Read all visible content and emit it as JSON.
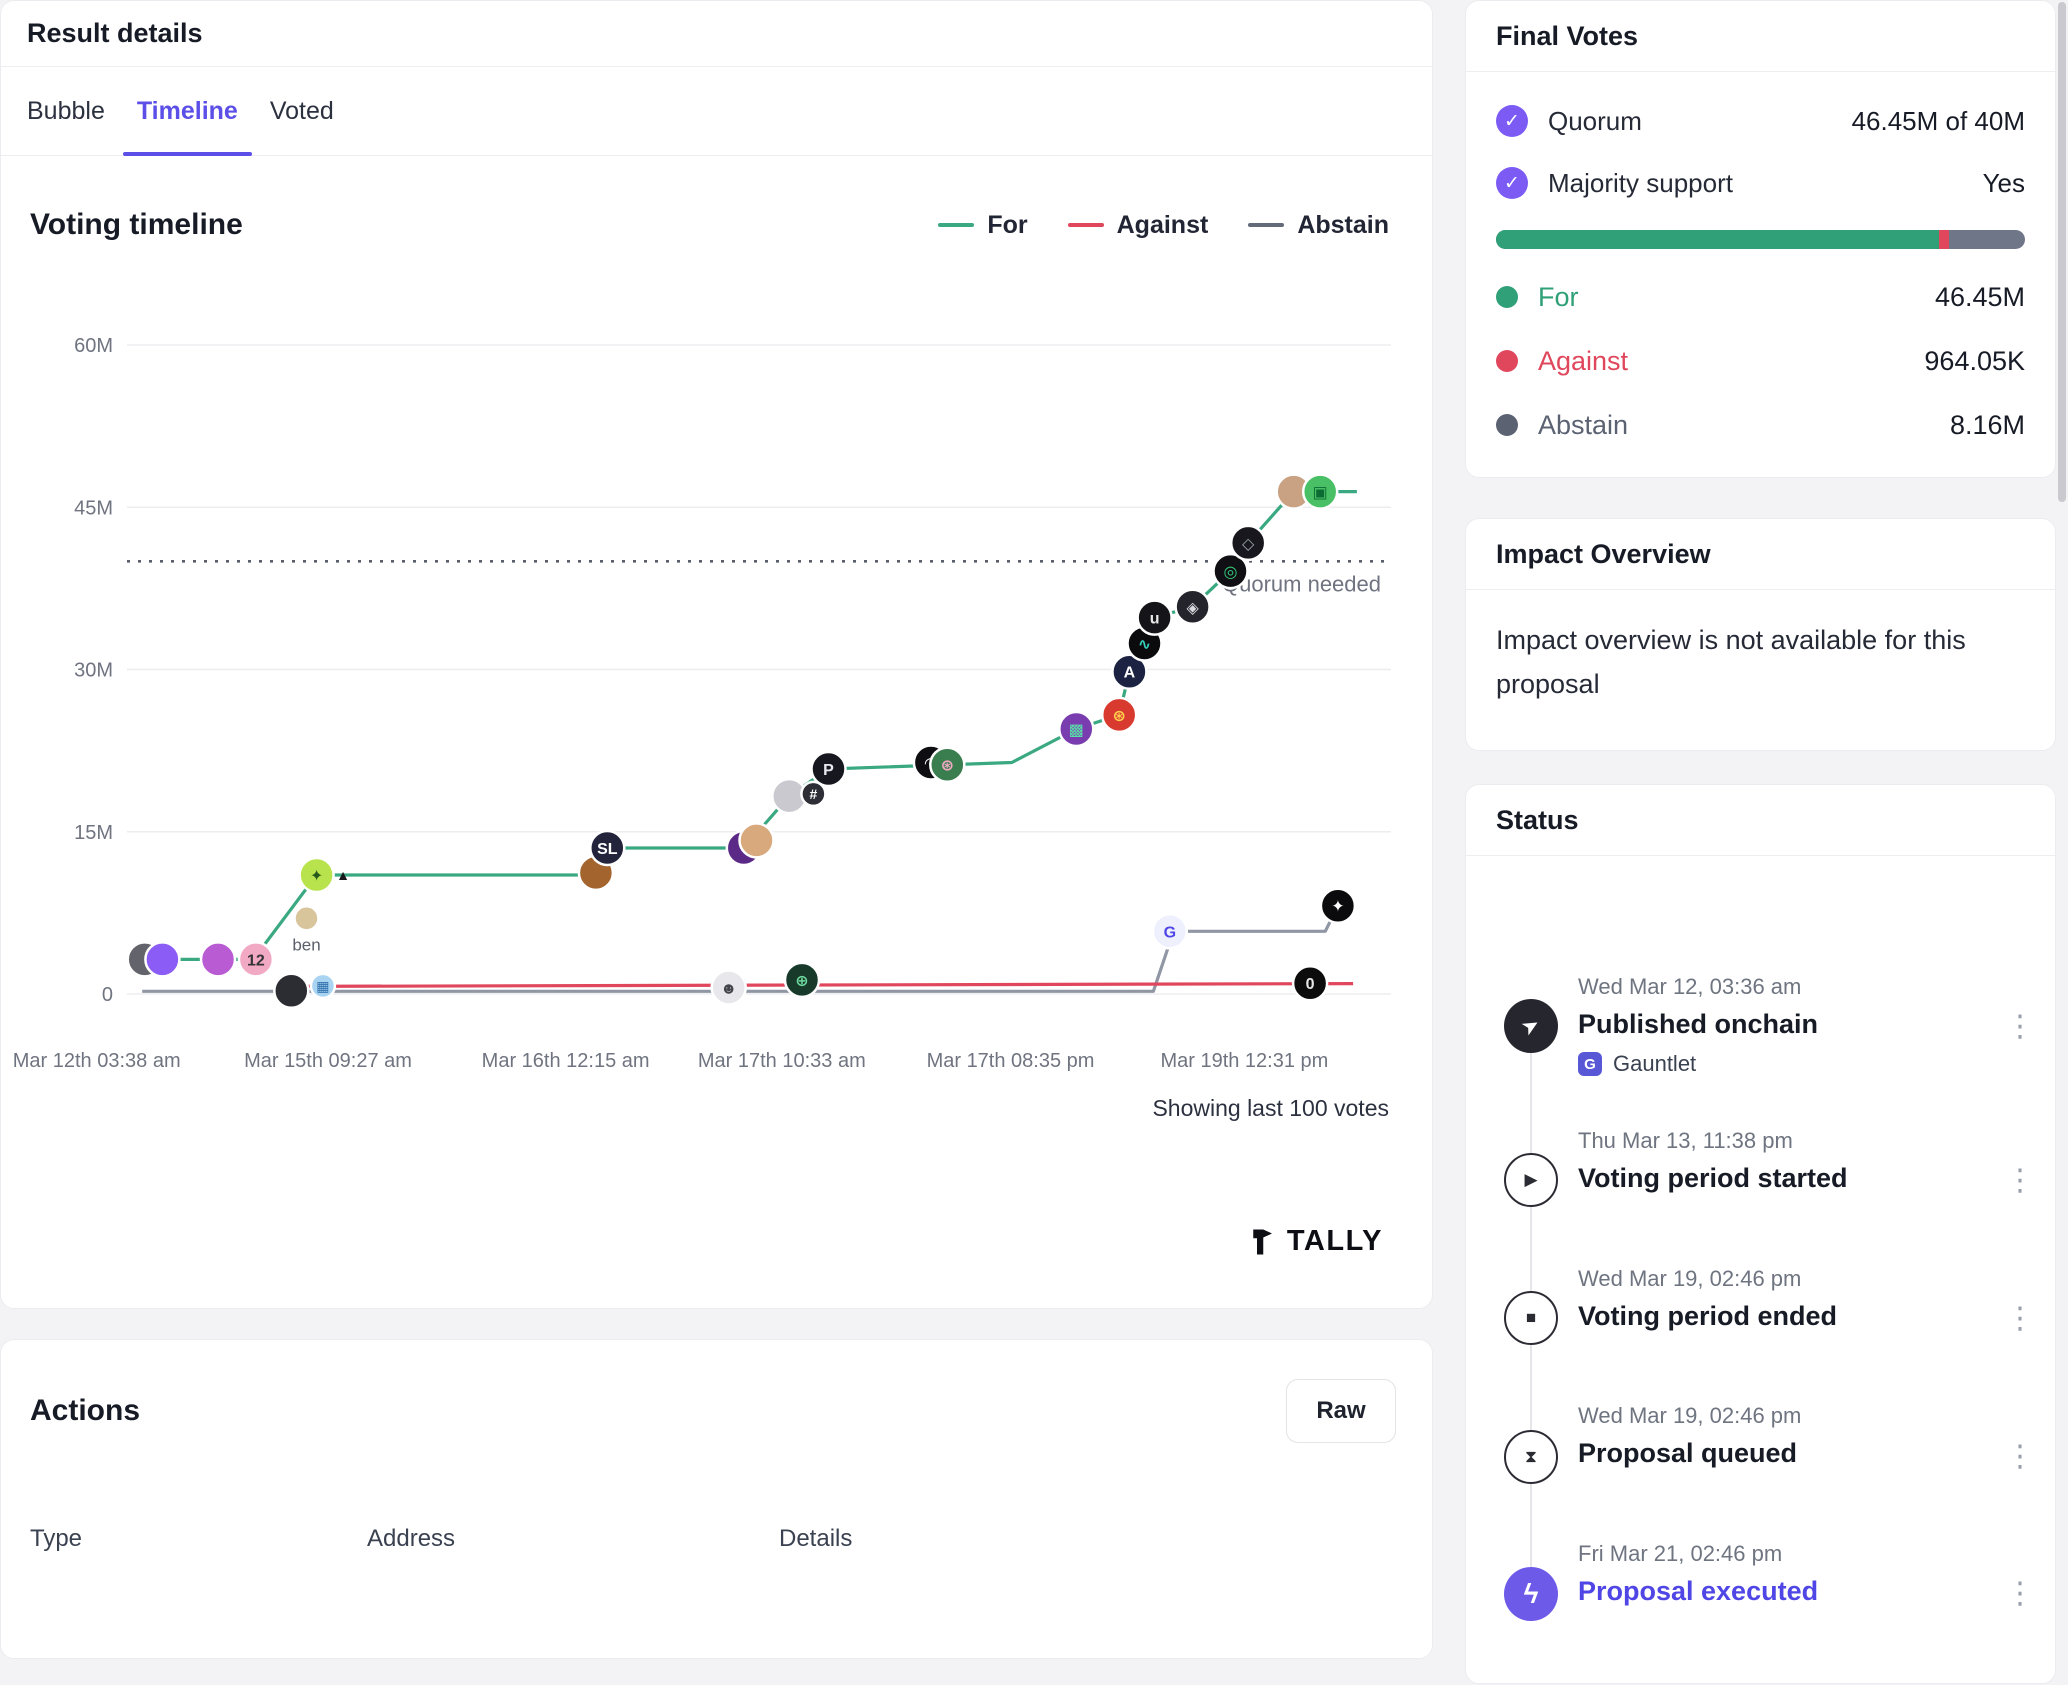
{
  "accent": "#5b4fe8",
  "icons": {
    "check": "✓",
    "kebab": "⋮"
  },
  "main": {
    "title": "Result details",
    "tabs": [
      {
        "label": "Bubble"
      },
      {
        "label": "Timeline"
      },
      {
        "label": "Voted"
      }
    ],
    "chart": {
      "title": "Voting timeline",
      "legend": [
        {
          "label": "For",
          "color": "#3aa981"
        },
        {
          "label": "Against",
          "color": "#e0475c"
        },
        {
          "label": "Abstain",
          "color": "#636a78"
        }
      ],
      "quorum_label": "Quorum needed",
      "footnote": "Showing last 100 votes",
      "watermark": "TALLY"
    },
    "actions": {
      "title": "Actions",
      "raw_label": "Raw",
      "columns": [
        "Type",
        "Address",
        "Details"
      ]
    }
  },
  "sidebar": {
    "final_votes": {
      "title": "Final Votes",
      "checks": [
        {
          "label": "Quorum",
          "value": "46.45M of 40M"
        },
        {
          "label": "Majority support",
          "value": "Yes"
        }
      ],
      "bar": {
        "for_pct": 83.8,
        "against_pct": 1.9,
        "abstain_pct": 14.3,
        "for_color": "#2fa077",
        "against_color": "#e0475c",
        "abstain_color": "#6e7687"
      },
      "tallies": [
        {
          "label": "For",
          "value": "46.45M",
          "color": "#2fa077"
        },
        {
          "label": "Against",
          "value": "964.05K",
          "color": "#e0475c"
        },
        {
          "label": "Abstain",
          "value": "8.16M",
          "color": "#5b6272"
        }
      ]
    },
    "impact": {
      "title": "Impact Overview",
      "body": "Impact overview is not available for this proposal"
    },
    "status": {
      "title": "Status",
      "items": [
        {
          "date": "Wed Mar 12, 03:36 am",
          "title": "Published onchain",
          "sub": "Gauntlet",
          "sub_logo": "G",
          "icon": "➤",
          "style": "dark"
        },
        {
          "date": "Thu Mar 13, 11:38 pm",
          "title": "Voting period started",
          "icon": "▶",
          "style": "outline"
        },
        {
          "date": "Wed Mar 19, 02:46 pm",
          "title": "Voting period ended",
          "icon": "■",
          "style": "outline"
        },
        {
          "date": "Wed Mar 19, 02:46 pm",
          "title": "Proposal queued",
          "icon": "⧗",
          "style": "outline"
        },
        {
          "date": "Fri Mar 21, 02:46 pm",
          "title": "Proposal executed",
          "icon": "ϟ",
          "style": "accent"
        }
      ]
    }
  },
  "chart_data": {
    "type": "line",
    "title": "Voting timeline",
    "x_axis": "time (Mar 12 – Mar 19)",
    "x_unit": "fraction of plot width",
    "y_unit": "millions of votes",
    "ylim": [
      0,
      60
    ],
    "quorum_value": 40,
    "y_ticks": [
      {
        "value": 60,
        "label": "60M"
      },
      {
        "value": 45,
        "label": "45M"
      },
      {
        "value": 30,
        "label": "30M"
      },
      {
        "value": 15,
        "label": "15M"
      },
      {
        "value": 0,
        "label": "0"
      }
    ],
    "x_ticks": [
      {
        "pos": -0.024,
        "label": "Mar 12th 03:38 am"
      },
      {
        "pos": 0.159,
        "label": "Mar 15th 09:27 am"
      },
      {
        "pos": 0.347,
        "label": "Mar 16th 12:15 am"
      },
      {
        "pos": 0.518,
        "label": "Mar 17th 10:33 am"
      },
      {
        "pos": 0.699,
        "label": "Mar 17th 08:35 pm"
      },
      {
        "pos": 0.884,
        "label": "Mar 19th 12:31 pm"
      }
    ],
    "series": [
      {
        "name": "Abstain",
        "color": "#9096a4",
        "final_display": "8.16M",
        "points": [
          [
            0.012,
            0.25
          ],
          [
            0.812,
            0.25
          ],
          [
            0.828,
            5.8
          ],
          [
            0.948,
            5.8
          ],
          [
            0.958,
            8.16
          ]
        ]
      },
      {
        "name": "Against",
        "color": "#e0475c",
        "final_display": "964.05K",
        "points": [
          [
            0.13,
            0.7
          ],
          [
            0.97,
            0.96
          ]
        ]
      },
      {
        "name": "For",
        "color": "#3aa981",
        "final_display": "46.45M",
        "points": [
          [
            0.013,
            3.2
          ],
          [
            0.1,
            3.2
          ],
          [
            0.15,
            11
          ],
          [
            0.371,
            11
          ],
          [
            0.38,
            13.5
          ],
          [
            0.488,
            13.5
          ],
          [
            0.524,
            18.3
          ],
          [
            0.555,
            20.8
          ],
          [
            0.7,
            21.4
          ],
          [
            0.751,
            24.5
          ],
          [
            0.785,
            25.8
          ],
          [
            0.793,
            29.8
          ],
          [
            0.805,
            32.4
          ],
          [
            0.813,
            34.8
          ],
          [
            0.843,
            35.8
          ],
          [
            0.873,
            39.1
          ],
          [
            0.887,
            41.7
          ],
          [
            0.923,
            46.45
          ],
          [
            0.973,
            46.45
          ]
        ]
      }
    ],
    "avatars": [
      {
        "f": 0.014,
        "v": 3.2,
        "bg": "#63636c"
      },
      {
        "f": 0.028,
        "v": 3.2,
        "bg": "#8b5cf6"
      },
      {
        "f": 0.072,
        "v": 3.2,
        "bg": "#b95cd4"
      },
      {
        "f": 0.102,
        "v": 3.2,
        "bg": "#f2a9c4",
        "t": "12",
        "fg": "#343434"
      },
      {
        "f": 0.13,
        "v": 0.3,
        "bg": "#2c2c33"
      },
      {
        "f": 0.155,
        "v": 0.75,
        "bg": "#a8d4f2",
        "t": "▦",
        "fg": "#2b6ca8",
        "small": true
      },
      {
        "f": 0.142,
        "v": 7.0,
        "bg": "#d8c59c",
        "small": true,
        "label": "ben"
      },
      {
        "f": 0.15,
        "v": 11.0,
        "bg": "#b8e34d",
        "t": "✦",
        "fg": "#27591c"
      },
      {
        "f": 0.171,
        "v": 11.0,
        "bg": "none",
        "t": "▲",
        "fg": "#17171c",
        "small": true
      },
      {
        "f": 0.371,
        "v": 11.2,
        "bg": "#a3642e"
      },
      {
        "f": 0.38,
        "v": 13.5,
        "bg": "#23233c",
        "t": "SL",
        "fg": "#ffffff"
      },
      {
        "f": 0.488,
        "v": 13.5,
        "bg": "#5b2a86"
      },
      {
        "f": 0.498,
        "v": 14.2,
        "bg": "#d9a97e"
      },
      {
        "f": 0.476,
        "v": 0.6,
        "bg": "#e8e8ec",
        "t": "☻",
        "fg": "#44444c"
      },
      {
        "f": 0.534,
        "v": 1.3,
        "bg": "#173a2a",
        "t": "⊕",
        "fg": "#6fd89e"
      },
      {
        "f": 0.524,
        "v": 18.3,
        "bg": "#c9c9cf"
      },
      {
        "f": 0.543,
        "v": 18.5,
        "bg": "#2e2e36",
        "t": "#",
        "fg": "#ffffff",
        "small": true
      },
      {
        "f": 0.555,
        "v": 20.8,
        "bg": "#17171f",
        "t": "P",
        "fg": "#e9e9f2"
      },
      {
        "f": 0.636,
        "v": 21.4,
        "bg": "#0d0d12",
        "t": "◠",
        "fg": "#ffffff"
      },
      {
        "f": 0.649,
        "v": 21.2,
        "bg": "#3a7d4f",
        "t": "⊛",
        "fg": "#f2a9c4"
      },
      {
        "f": 0.751,
        "v": 24.5,
        "bg": "#7a3db0",
        "t": "▩",
        "fg": "#57e6a8"
      },
      {
        "f": 0.785,
        "v": 25.8,
        "bg": "#d83a30",
        "t": "⊛",
        "fg": "#ffd24d"
      },
      {
        "f": 0.793,
        "v": 29.8,
        "bg": "#1c2342",
        "t": "A",
        "fg": "#ffffff"
      },
      {
        "f": 0.805,
        "v": 32.4,
        "bg": "#0b0b0e",
        "t": "∿",
        "fg": "#35d0ba"
      },
      {
        "f": 0.813,
        "v": 34.8,
        "bg": "#151519",
        "t": "u",
        "fg": "#e8e8e8"
      },
      {
        "f": 0.843,
        "v": 35.8,
        "bg": "#24242c",
        "t": "◈",
        "fg": "#d8d8de"
      },
      {
        "f": 0.873,
        "v": 39.1,
        "bg": "#101014",
        "t": "◎",
        "fg": "#35d07f"
      },
      {
        "f": 0.887,
        "v": 41.7,
        "bg": "#17171d",
        "t": "◇",
        "fg": "#9aa2ae"
      },
      {
        "f": 0.825,
        "v": 5.8,
        "bg": "#eef0fe",
        "t": "G",
        "fg": "#4f46e5"
      },
      {
        "f": 0.958,
        "v": 8.16,
        "bg": "#0b0b0e",
        "t": "✦",
        "fg": "#ffffff"
      },
      {
        "f": 0.936,
        "v": 1.0,
        "bg": "#0c0c0c",
        "t": "0",
        "fg": "#e8e8e8"
      },
      {
        "f": 0.923,
        "v": 46.45,
        "bg": "#c9a284"
      },
      {
        "f": 0.944,
        "v": 46.45,
        "bg": "#49c065",
        "t": "▣",
        "fg": "#0b6b32"
      }
    ]
  }
}
